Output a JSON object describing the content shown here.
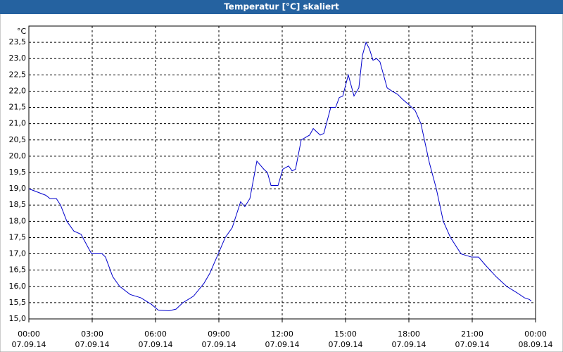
{
  "chart_data": {
    "type": "line",
    "title": "Temperatur [°C] skaliert",
    "y_label": "°C",
    "x": [
      0,
      0.8,
      1.0,
      1.3,
      1.5,
      1.8,
      2.13,
      2.47,
      2.97,
      3.47,
      3.63,
      3.97,
      4.3,
      4.8,
      5.3,
      5.8,
      6.13,
      6.63,
      6.97,
      7.3,
      7.8,
      8.3,
      8.57,
      8.97,
      9.3,
      9.63,
      10.03,
      10.23,
      10.47,
      10.8,
      11.13,
      11.3,
      11.47,
      11.8,
      12.03,
      12.3,
      12.47,
      12.63,
      12.9,
      13.3,
      13.47,
      13.8,
      13.97,
      14.3,
      14.53,
      14.7,
      14.87,
      15.13,
      15.4,
      15.63,
      15.8,
      15.97,
      16.13,
      16.3,
      16.47,
      16.63,
      16.97,
      17.2,
      17.47,
      17.7,
      17.97,
      18.3,
      18.57,
      18.97,
      19.3,
      19.63,
      19.97,
      20.47,
      20.97,
      21.3,
      21.63,
      22.13,
      22.63,
      23.13,
      23.47,
      23.7,
      23.8
    ],
    "series": [
      {
        "name": "Temperatur",
        "color": "#0000cc",
        "values": [
          19.0,
          18.8,
          18.7,
          18.7,
          18.5,
          18.0,
          17.7,
          17.6,
          17.0,
          17.0,
          16.9,
          16.3,
          16.0,
          15.75,
          15.65,
          15.45,
          15.27,
          15.25,
          15.3,
          15.5,
          15.7,
          16.1,
          16.4,
          17.0,
          17.5,
          17.8,
          18.6,
          18.45,
          18.7,
          19.85,
          19.6,
          19.5,
          19.1,
          19.1,
          19.6,
          19.7,
          19.55,
          19.6,
          20.5,
          20.65,
          20.85,
          20.65,
          20.7,
          21.5,
          21.5,
          21.8,
          21.85,
          22.5,
          21.85,
          22.1,
          23.1,
          23.5,
          23.3,
          22.95,
          23.0,
          22.9,
          22.1,
          22.0,
          21.9,
          21.75,
          21.6,
          21.4,
          21.0,
          19.8,
          19.0,
          18.0,
          17.5,
          17.0,
          16.9,
          16.9,
          16.65,
          16.3,
          16.0,
          15.8,
          15.65,
          15.6,
          15.55
        ]
      }
    ],
    "xlim": [
      0,
      24
    ],
    "ylim": [
      15,
      24
    ],
    "xticks": [
      {
        "value": 0,
        "label": "00:00",
        "date": "07.09.14"
      },
      {
        "value": 3,
        "label": "03:00",
        "date": "07.09.14"
      },
      {
        "value": 6,
        "label": "06:00",
        "date": "07.09.14"
      },
      {
        "value": 9,
        "label": "09:00",
        "date": "07.09.14"
      },
      {
        "value": 12,
        "label": "12:00",
        "date": "07.09.14"
      },
      {
        "value": 15,
        "label": "15:00",
        "date": "07.09.14"
      },
      {
        "value": 18,
        "label": "18:00",
        "date": "07.09.14"
      },
      {
        "value": 21,
        "label": "21:00",
        "date": "07.09.14"
      },
      {
        "value": 24,
        "label": "00:00",
        "date": "08.09.14"
      }
    ],
    "yticks": [
      {
        "value": 15,
        "label": "15,0"
      },
      {
        "value": 15.5,
        "label": "15,5"
      },
      {
        "value": 16,
        "label": "16,0"
      },
      {
        "value": 16.5,
        "label": "16,5"
      },
      {
        "value": 17,
        "label": "17,0"
      },
      {
        "value": 17.5,
        "label": "17,5"
      },
      {
        "value": 18,
        "label": "18,0"
      },
      {
        "value": 18.5,
        "label": "18,5"
      },
      {
        "value": 19,
        "label": "19,0"
      },
      {
        "value": 19.5,
        "label": "19,5"
      },
      {
        "value": 20,
        "label": "20,0"
      },
      {
        "value": 20.5,
        "label": "20,5"
      },
      {
        "value": 21,
        "label": "21,0"
      },
      {
        "value": 21.5,
        "label": "21,5"
      },
      {
        "value": 22,
        "label": "22,0"
      },
      {
        "value": 22.5,
        "label": "22,5"
      },
      {
        "value": 23,
        "label": "23,0"
      },
      {
        "value": 23.5,
        "label": "23,5"
      }
    ],
    "grid": true
  }
}
